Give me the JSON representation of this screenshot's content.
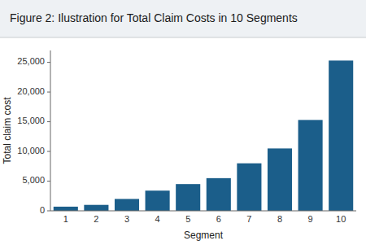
{
  "chart_data": {
    "type": "bar",
    "title": "Figure 2: Ilustration for Total Claim Costs in 10 Segments",
    "xlabel": "Segment",
    "ylabel": "Total claim cost",
    "categories": [
      "1",
      "2",
      "3",
      "4",
      "5",
      "6",
      "7",
      "8",
      "9",
      "10"
    ],
    "values": [
      700,
      1000,
      2000,
      3400,
      4500,
      5500,
      8000,
      10500,
      15300,
      25300
    ],
    "color": "#1b5e8a",
    "ylim": [
      0,
      27000
    ],
    "yticks": [
      0,
      {
        "value": 5000,
        "label": "5,000"
      },
      {
        "value": 10000,
        "label": "10,000"
      },
      {
        "value": 15000,
        "label": "15,000"
      },
      {
        "value": 20000,
        "label": "20,000"
      },
      {
        "value": 25000,
        "label": "25,000"
      }
    ],
    "grid": false
  }
}
